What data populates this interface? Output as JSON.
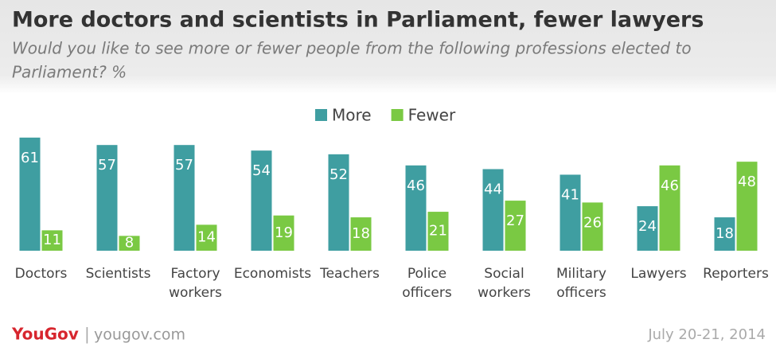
{
  "chart_data": {
    "type": "bar",
    "title": "More doctors and scientists in Parliament, fewer lawyers",
    "subtitle": [
      "Would you like to see more or fewer people from the following professions elected to",
      "Parliament? %"
    ],
    "categories": [
      "Doctors",
      "Scientists",
      "Factory workers",
      "Economists",
      "Teachers",
      "Police officers",
      "Social workers",
      "Military officers",
      "Lawyers",
      "Reporters"
    ],
    "series": [
      {
        "name": "More",
        "color": "#3f9ea1",
        "values": [
          61,
          57,
          57,
          54,
          52,
          46,
          44,
          41,
          24,
          18
        ]
      },
      {
        "name": "Fewer",
        "color": "#7ac943",
        "values": [
          11,
          8,
          14,
          19,
          18,
          21,
          27,
          26,
          46,
          48
        ]
      }
    ],
    "ylim": [
      0,
      65
    ]
  },
  "footer": {
    "logo": "YouGov",
    "separator": "|",
    "site": "yougov.com",
    "date": "July 20-21, 2014"
  }
}
